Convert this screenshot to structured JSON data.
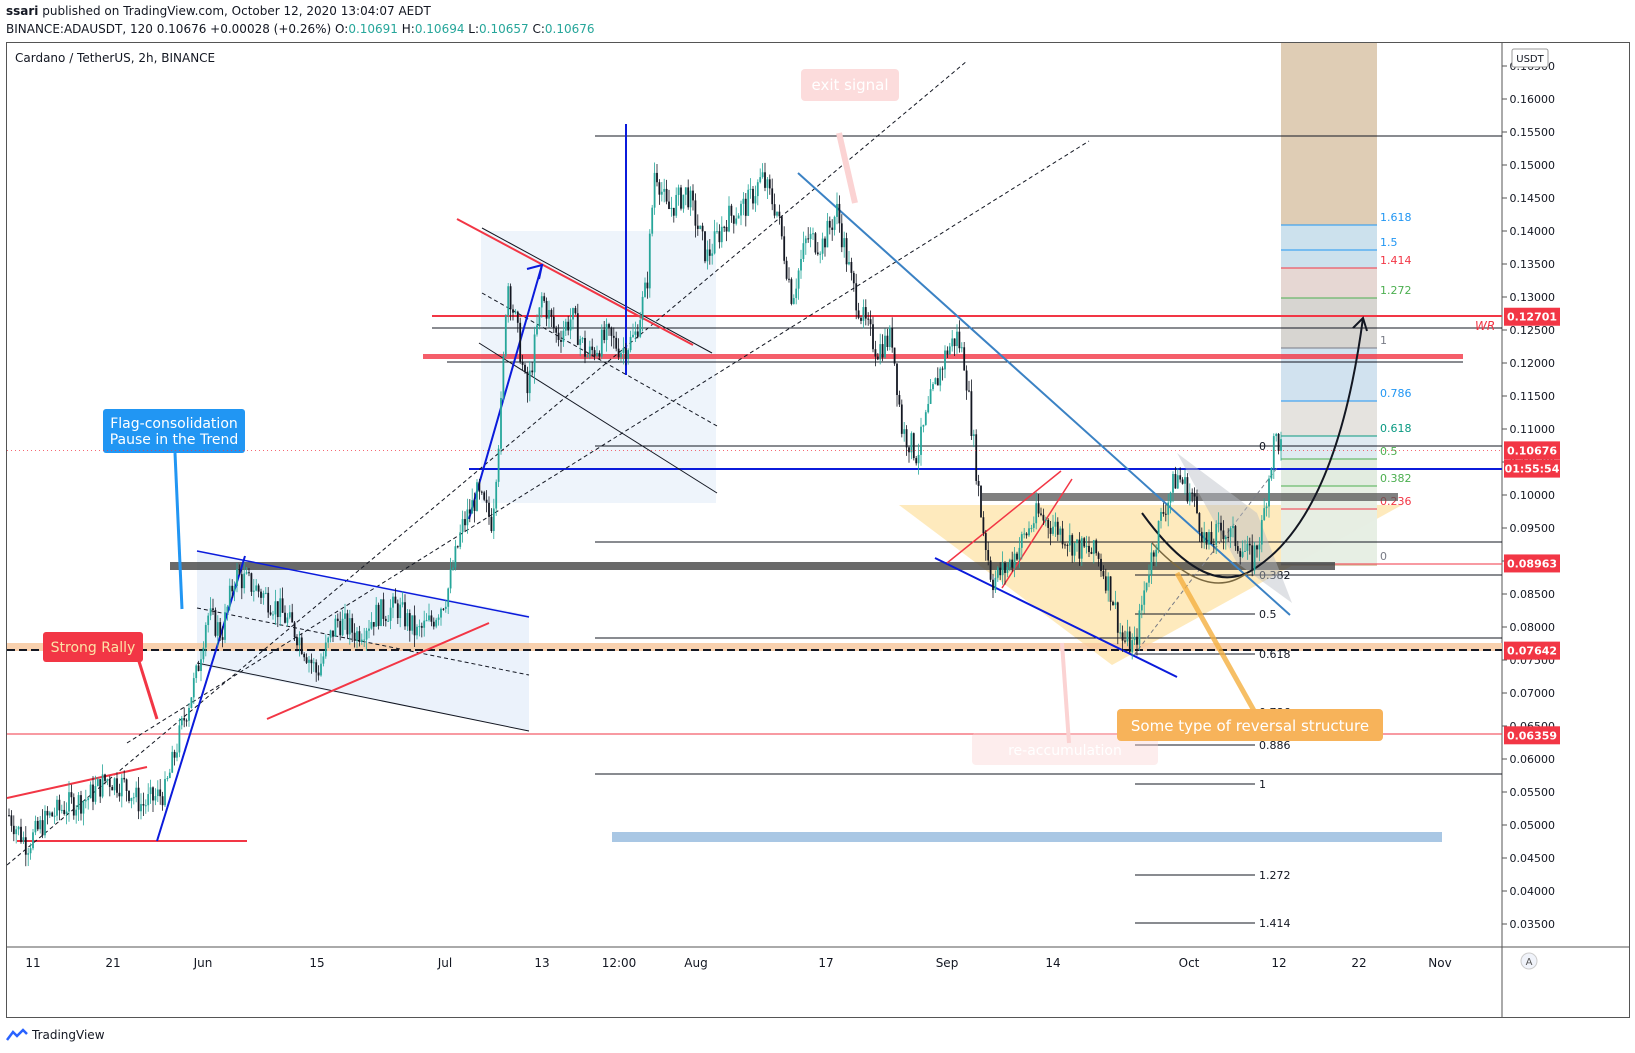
{
  "header": {
    "author": "ssari",
    "published_text": "published on TradingView.com, October 12, 2020 13:04:07 AEDT",
    "symbol_line": "BINANCE:ADAUSDT, 120",
    "last": "0.10676",
    "change": "+0.00028 (+0.26%)",
    "o_label": "O:",
    "o": "0.10691",
    "h_label": "H:",
    "h": "0.10694",
    "l_label": "L:",
    "l": "0.10657",
    "c_label": "C:",
    "c": "0.10676"
  },
  "chart": {
    "legend": "Cardano / TetherUS, 2h, BINANCE",
    "currency_badge": "USDT",
    "price_ticks": [
      "0.16500",
      "0.16000",
      "0.15500",
      "0.15000",
      "0.14500",
      "0.14000",
      "0.13500",
      "0.13000",
      "0.12500",
      "0.12000",
      "0.11500",
      "0.11000",
      "0.10500",
      "0.10000",
      "0.09500",
      "0.09000",
      "0.08500",
      "0.08000",
      "0.07500",
      "0.07000",
      "0.06500",
      "0.06000",
      "0.05500",
      "0.05000",
      "0.04500",
      "0.04000",
      "0.03500"
    ],
    "price_tick_values": [
      0.165,
      0.16,
      0.155,
      0.15,
      0.145,
      0.14,
      0.135,
      0.13,
      0.125,
      0.12,
      0.115,
      0.11,
      0.105,
      0.1,
      0.095,
      0.09,
      0.085,
      0.08,
      0.075,
      0.07,
      0.065,
      0.06,
      0.055,
      0.05,
      0.045,
      0.04,
      0.035
    ],
    "time_ticks": [
      "11",
      "21",
      "Jun",
      "15",
      "Jul",
      "13",
      "12:00",
      "Aug",
      "17",
      "Sep",
      "14",
      "Oct",
      "12",
      "22",
      "Nov"
    ],
    "price_labels": [
      {
        "text": "0.12701",
        "value": 0.12701,
        "color": "#f23645"
      },
      {
        "text": "0.10676",
        "value": 0.10676,
        "color": "#f23645"
      },
      {
        "text": "01:55:54",
        "value": 0.104,
        "color": "#f23645"
      },
      {
        "text": "0.08963",
        "value": 0.08963,
        "color": "#f23645"
      },
      {
        "text": "0.07642",
        "value": 0.07642,
        "color": "#f23645"
      },
      {
        "text": "0.06359",
        "value": 0.06359,
        "color": "#f23645"
      }
    ],
    "fib_ext_levels": [
      {
        "label": "1.618",
        "color": "#2196f3"
      },
      {
        "label": "1.5",
        "color": "#2196f3"
      },
      {
        "label": "1.414",
        "color": "#f23645"
      },
      {
        "label": "1.272",
        "color": "#4caf50"
      },
      {
        "label": "1",
        "color": "#787b86"
      },
      {
        "label": "0.786",
        "color": "#2196f3"
      },
      {
        "label": "0.618",
        "color": "#089981"
      },
      {
        "label": "0.5",
        "color": "#4caf50"
      },
      {
        "label": "0.382",
        "color": "#4caf50"
      },
      {
        "label": "0.236",
        "color": "#f23645"
      },
      {
        "label": "0",
        "color": "#787b86"
      }
    ],
    "fib_ret_levels": [
      "0",
      "0.382",
      "0.5",
      "0.618",
      "0.786",
      "0.886",
      "1",
      "1.272",
      "1.414"
    ],
    "annotations": {
      "flag": "Flag-consolidation\nPause in the Trend",
      "flag_line1": "Flag-consolidation",
      "flag_line2": "Pause in the Trend",
      "strong_rally": "Strong Rally",
      "exit_signal": "exit signal",
      "reversal": "Some type of reversal structure",
      "faded": "re-accumulation",
      "wr": "WR"
    }
  },
  "footer": {
    "brand": "TradingView"
  },
  "colors": {
    "up": "#26a69a",
    "down": "#131722",
    "blue_line": "#0b1bdb",
    "red_line": "#f23645",
    "flag_blue": "#2196f3"
  }
}
